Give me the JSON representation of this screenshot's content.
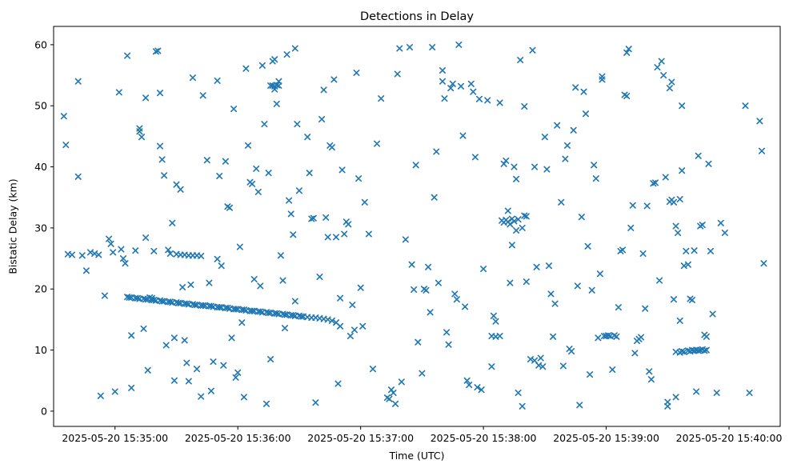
{
  "chart_data": {
    "type": "scatter",
    "title": "Detections in Delay",
    "xlabel": "Time (UTC)",
    "ylabel": "Bistatic Delay (km)",
    "marker": "x",
    "marker_color": "#1f77b4",
    "grid": false,
    "legend": null,
    "x_encoding": "seconds after 2025-05-20 15:35:00 UTC",
    "xlim": [
      -30,
      325
    ],
    "ylim": [
      -2.5,
      63
    ],
    "x_ticks": [
      0,
      60,
      120,
      180,
      240,
      300
    ],
    "x_tick_labels": [
      "2025-05-20 15:35:00",
      "2025-05-20 15:36:00",
      "2025-05-20 15:37:00",
      "2025-05-20 15:38:00",
      "2025-05-20 15:39:00",
      "2025-05-20 15:40:00"
    ],
    "y_ticks": [
      0,
      10,
      20,
      30,
      40,
      50,
      60
    ],
    "points": [
      [
        -25,
        48.3
      ],
      [
        -24,
        43.6
      ],
      [
        -23,
        25.7
      ],
      [
        -21,
        25.6
      ],
      [
        -18,
        54.0
      ],
      [
        -18,
        38.4
      ],
      [
        -16,
        25.5
      ],
      [
        -14,
        23.0
      ],
      [
        -12,
        26.0
      ],
      [
        -10,
        25.8
      ],
      [
        -8,
        25.6
      ],
      [
        -7,
        2.5
      ],
      [
        -5,
        18.9
      ],
      [
        -3,
        28.2
      ],
      [
        -2,
        27.4
      ],
      [
        -1,
        26.0
      ],
      [
        0,
        3.2
      ],
      [
        2,
        52.2
      ],
      [
        3,
        26.5
      ],
      [
        4,
        25.0
      ],
      [
        5,
        24.2
      ],
      [
        6,
        58.2
      ],
      [
        8,
        3.8
      ],
      [
        8,
        12.4
      ],
      [
        10,
        26.3
      ],
      [
        12,
        46.3
      ],
      [
        12,
        45.8
      ],
      [
        13,
        44.9
      ],
      [
        14,
        13.5
      ],
      [
        15,
        51.3
      ],
      [
        15,
        28.4
      ],
      [
        16,
        6.7
      ],
      [
        17,
        18.6
      ],
      [
        18,
        18.5
      ],
      [
        19,
        26.2
      ],
      [
        20,
        58.9
      ],
      [
        21,
        59.0
      ],
      [
        22,
        52.1
      ],
      [
        22,
        43.4
      ],
      [
        23,
        41.2
      ],
      [
        24,
        38.6
      ],
      [
        25,
        10.8
      ],
      [
        26,
        26.4
      ],
      [
        27,
        25.8
      ],
      [
        28,
        30.8
      ],
      [
        29,
        5.0
      ],
      [
        29,
        12.0
      ],
      [
        30,
        25.7
      ],
      [
        32,
        25.6
      ],
      [
        34,
        25.6
      ],
      [
        36,
        25.5
      ],
      [
        38,
        25.5
      ],
      [
        40,
        25.5
      ],
      [
        42,
        25.4
      ],
      [
        30,
        37.1
      ],
      [
        32,
        36.3
      ],
      [
        33,
        20.3
      ],
      [
        34,
        11.6
      ],
      [
        35,
        7.9
      ],
      [
        36,
        4.9
      ],
      [
        37,
        20.7
      ],
      [
        38,
        54.6
      ],
      [
        40,
        6.9
      ],
      [
        42,
        2.4
      ],
      [
        43,
        51.7
      ],
      [
        45,
        41.1
      ],
      [
        46,
        21.0
      ],
      [
        47,
        3.3
      ],
      [
        48,
        8.1
      ],
      [
        50,
        54.1
      ],
      [
        50,
        24.9
      ],
      [
        51,
        38.5
      ],
      [
        52,
        23.8
      ],
      [
        53,
        7.5
      ],
      [
        54,
        40.9
      ],
      [
        55,
        33.5
      ],
      [
        56,
        33.3
      ],
      [
        57,
        12.0
      ],
      [
        58,
        49.5
      ],
      [
        59,
        5.5
      ],
      [
        60,
        6.3
      ],
      [
        61,
        26.9
      ],
      [
        62,
        14.5
      ],
      [
        63,
        2.3
      ],
      [
        64,
        56.1
      ],
      [
        65,
        43.5
      ],
      [
        66,
        37.5
      ],
      [
        67,
        37.2
      ],
      [
        68,
        21.6
      ],
      [
        69,
        39.7
      ],
      [
        70,
        35.9
      ],
      [
        71,
        20.5
      ],
      [
        72,
        56.6
      ],
      [
        73,
        47.0
      ],
      [
        74,
        1.2
      ],
      [
        75,
        39.0
      ],
      [
        76,
        8.5
      ],
      [
        77,
        57.3
      ],
      [
        78,
        57.6
      ],
      [
        78,
        52.7
      ],
      [
        79,
        50.3
      ],
      [
        80,
        54.0
      ],
      [
        81,
        25.5
      ],
      [
        82,
        21.4
      ],
      [
        83,
        13.6
      ],
      [
        84,
        58.4
      ],
      [
        85,
        34.5
      ],
      [
        86,
        32.3
      ],
      [
        87,
        28.9
      ],
      [
        88,
        18.0
      ],
      [
        88,
        59.4
      ],
      [
        89,
        47.0
      ],
      [
        90,
        36.1
      ],
      [
        76,
        53.3
      ],
      [
        77,
        53.3
      ],
      [
        78,
        53.2
      ],
      [
        79,
        53.4
      ],
      [
        80,
        53.3
      ],
      [
        94,
        44.9
      ],
      [
        95,
        39.0
      ],
      [
        96,
        31.5
      ],
      [
        97,
        31.6
      ],
      [
        98,
        1.4
      ],
      [
        100,
        22.0
      ],
      [
        101,
        47.8
      ],
      [
        102,
        52.6
      ],
      [
        103,
        31.7
      ],
      [
        104,
        28.5
      ],
      [
        105,
        43.5
      ],
      [
        106,
        43.2
      ],
      [
        107,
        54.3
      ],
      [
        108,
        28.5
      ],
      [
        109,
        4.5
      ],
      [
        110,
        18.5
      ],
      [
        111,
        39.5
      ],
      [
        112,
        29.0
      ],
      [
        113,
        31.0
      ],
      [
        114,
        30.6
      ],
      [
        115,
        12.3
      ],
      [
        116,
        17.4
      ],
      [
        117,
        13.3
      ],
      [
        118,
        55.4
      ],
      [
        119,
        38.1
      ],
      [
        120,
        20.2
      ],
      [
        121,
        13.9
      ],
      [
        122,
        34.2
      ],
      [
        124,
        29.0
      ],
      [
        126,
        6.9
      ],
      [
        128,
        43.8
      ],
      [
        130,
        51.2
      ],
      [
        133,
        2.2
      ],
      [
        134,
        2.0
      ],
      [
        135,
        3.5
      ],
      [
        136,
        3.0
      ],
      [
        137,
        1.2
      ],
      [
        138,
        55.2
      ],
      [
        139,
        59.4
      ],
      [
        140,
        4.8
      ],
      [
        142,
        28.1
      ],
      [
        144,
        59.6
      ],
      [
        145,
        24.0
      ],
      [
        146,
        19.9
      ],
      [
        147,
        40.3
      ],
      [
        148,
        11.3
      ],
      [
        150,
        6.2
      ],
      [
        151,
        20.0
      ],
      [
        152,
        19.8
      ],
      [
        153,
        23.6
      ],
      [
        154,
        16.2
      ],
      [
        155,
        59.6
      ],
      [
        156,
        35.0
      ],
      [
        157,
        42.5
      ],
      [
        158,
        21.0
      ],
      [
        160,
        55.8
      ],
      [
        160,
        54.0
      ],
      [
        161,
        51.2
      ],
      [
        162,
        12.9
      ],
      [
        163,
        10.9
      ],
      [
        164,
        52.9
      ],
      [
        165,
        53.6
      ],
      [
        166,
        19.2
      ],
      [
        167,
        18.3
      ],
      [
        168,
        60.0
      ],
      [
        169,
        53.2
      ],
      [
        170,
        45.1
      ],
      [
        171,
        17.1
      ],
      [
        172,
        5.0
      ],
      [
        173,
        4.3
      ],
      [
        174,
        53.6
      ],
      [
        175,
        52.3
      ],
      [
        176,
        41.6
      ],
      [
        177,
        3.9
      ],
      [
        178,
        51.1
      ],
      [
        179,
        3.5
      ],
      [
        180,
        23.3
      ],
      [
        182,
        50.9
      ],
      [
        184,
        12.3
      ],
      [
        184,
        7.3
      ],
      [
        185,
        15.6
      ],
      [
        186,
        14.7
      ],
      [
        186,
        12.2
      ],
      [
        188,
        50.5
      ],
      [
        188,
        12.3
      ],
      [
        189,
        31.2
      ],
      [
        190,
        30.9
      ],
      [
        191,
        31.3
      ],
      [
        192,
        31.0
      ],
      [
        193,
        30.6
      ],
      [
        194,
        31.5
      ],
      [
        195,
        31.1
      ],
      [
        196,
        29.6
      ],
      [
        197,
        31.4
      ],
      [
        199,
        30.0
      ],
      [
        200,
        32.0
      ],
      [
        201,
        31.9
      ],
      [
        190,
        40.5
      ],
      [
        191,
        41.0
      ],
      [
        192,
        32.8
      ],
      [
        193,
        21.0
      ],
      [
        194,
        27.2
      ],
      [
        195,
        40.0
      ],
      [
        196,
        38.0
      ],
      [
        197,
        3.0
      ],
      [
        198,
        57.5
      ],
      [
        199,
        0.8
      ],
      [
        200,
        49.9
      ],
      [
        201,
        21.2
      ],
      [
        204,
        59.1
      ],
      [
        205,
        40.0
      ],
      [
        206,
        23.6
      ],
      [
        203,
        8.5
      ],
      [
        205,
        8.3
      ],
      [
        207,
        7.5
      ],
      [
        209,
        7.3
      ],
      [
        208,
        8.7
      ],
      [
        210,
        44.9
      ],
      [
        211,
        39.6
      ],
      [
        212,
        23.8
      ],
      [
        213,
        19.2
      ],
      [
        214,
        12.2
      ],
      [
        215,
        17.6
      ],
      [
        216,
        46.8
      ],
      [
        218,
        34.2
      ],
      [
        219,
        7.4
      ],
      [
        220,
        41.3
      ],
      [
        221,
        43.5
      ],
      [
        222,
        10.2
      ],
      [
        223,
        9.8
      ],
      [
        224,
        46.0
      ],
      [
        225,
        53.0
      ],
      [
        226,
        20.5
      ],
      [
        227,
        1.0
      ],
      [
        228,
        31.8
      ],
      [
        229,
        52.3
      ],
      [
        230,
        48.7
      ],
      [
        231,
        27.0
      ],
      [
        232,
        6.0
      ],
      [
        233,
        19.8
      ],
      [
        234,
        40.3
      ],
      [
        235,
        38.1
      ],
      [
        236,
        12.0
      ],
      [
        237,
        22.5
      ],
      [
        238,
        54.3
      ],
      [
        238,
        54.8
      ],
      [
        239,
        12.3
      ],
      [
        240,
        12.3
      ],
      [
        241,
        12.4
      ],
      [
        242,
        12.3
      ],
      [
        244,
        12.4
      ],
      [
        245,
        12.2
      ],
      [
        243,
        6.8
      ],
      [
        246,
        17.0
      ],
      [
        247,
        26.2
      ],
      [
        248,
        26.4
      ],
      [
        249,
        51.8
      ],
      [
        250,
        51.6
      ],
      [
        250,
        58.7
      ],
      [
        251,
        59.3
      ],
      [
        252,
        30.0
      ],
      [
        253,
        33.7
      ],
      [
        254,
        9.5
      ],
      [
        255,
        11.5
      ],
      [
        256,
        11.8
      ],
      [
        257,
        12.1
      ],
      [
        258,
        25.8
      ],
      [
        259,
        16.8
      ],
      [
        260,
        33.6
      ],
      [
        261,
        6.5
      ],
      [
        262,
        5.2
      ],
      [
        263,
        37.3
      ],
      [
        264,
        37.4
      ],
      [
        265,
        56.3
      ],
      [
        266,
        21.4
      ],
      [
        267,
        57.3
      ],
      [
        268,
        55.0
      ],
      [
        269,
        38.3
      ],
      [
        270,
        1.5
      ],
      [
        270,
        0.8
      ],
      [
        271,
        52.9
      ],
      [
        272,
        53.9
      ],
      [
        273,
        18.3
      ],
      [
        274,
        2.3
      ],
      [
        275,
        29.2
      ],
      [
        276,
        14.8
      ],
      [
        277,
        39.4
      ],
      [
        278,
        23.8
      ],
      [
        279,
        26.2
      ],
      [
        280,
        24.0
      ],
      [
        281,
        18.4
      ],
      [
        282,
        18.2
      ],
      [
        283,
        26.3
      ],
      [
        284,
        3.2
      ],
      [
        285,
        41.8
      ],
      [
        286,
        30.3
      ],
      [
        287,
        30.5
      ],
      [
        288,
        12.5
      ],
      [
        289,
        12.2
      ],
      [
        271,
        34.3
      ],
      [
        272,
        34.6
      ],
      [
        273,
        34.2
      ],
      [
        274,
        30.3
      ],
      [
        276,
        34.7
      ],
      [
        277,
        50.0
      ],
      [
        274,
        9.7
      ],
      [
        276,
        9.6
      ],
      [
        277,
        9.8
      ],
      [
        278,
        9.7
      ],
      [
        280,
        9.9
      ],
      [
        281,
        9.8
      ],
      [
        282,
        10.0
      ],
      [
        283,
        9.9
      ],
      [
        284,
        10.0
      ],
      [
        285,
        9.9
      ],
      [
        286,
        10.0
      ],
      [
        287,
        10.1
      ],
      [
        288,
        9.9
      ],
      [
        289,
        10.0
      ],
      [
        290,
        40.5
      ],
      [
        291,
        26.2
      ],
      [
        292,
        15.9
      ],
      [
        294,
        3.0
      ],
      [
        296,
        30.8
      ],
      [
        298,
        29.2
      ],
      [
        308,
        50.0
      ],
      [
        310,
        3.0
      ],
      [
        315,
        47.5
      ],
      [
        316,
        42.6
      ],
      [
        317,
        24.2
      ],
      [
        6,
        18.7
      ],
      [
        8,
        18.6
      ],
      [
        10,
        18.5
      ],
      [
        12,
        18.4
      ],
      [
        14,
        18.4
      ],
      [
        16,
        18.3
      ],
      [
        18,
        18.2
      ],
      [
        20,
        18.1
      ],
      [
        22,
        18.1
      ],
      [
        24,
        18.0
      ],
      [
        26,
        17.9
      ],
      [
        28,
        17.8
      ],
      [
        30,
        17.8
      ],
      [
        32,
        17.7
      ],
      [
        34,
        17.6
      ],
      [
        36,
        17.5
      ],
      [
        38,
        17.5
      ],
      [
        40,
        17.4
      ],
      [
        42,
        17.3
      ],
      [
        44,
        17.3
      ],
      [
        46,
        17.2
      ],
      [
        48,
        17.1
      ],
      [
        50,
        17.0
      ],
      [
        52,
        17.0
      ],
      [
        54,
        16.9
      ],
      [
        56,
        16.8
      ],
      [
        58,
        16.7
      ],
      [
        60,
        16.7
      ],
      [
        62,
        16.6
      ],
      [
        64,
        16.5
      ],
      [
        66,
        16.4
      ],
      [
        68,
        16.4
      ],
      [
        70,
        16.3
      ],
      [
        72,
        16.2
      ],
      [
        74,
        16.2
      ],
      [
        76,
        16.1
      ],
      [
        78,
        16.0
      ],
      [
        80,
        15.9
      ],
      [
        82,
        15.9
      ],
      [
        84,
        15.8
      ],
      [
        86,
        15.7
      ],
      [
        88,
        15.6
      ],
      [
        90,
        15.6
      ],
      [
        92,
        15.5
      ],
      [
        94,
        15.4
      ],
      [
        96,
        15.3
      ],
      [
        98,
        15.3
      ],
      [
        100,
        15.2
      ],
      [
        7,
        18.6
      ],
      [
        11,
        18.5
      ],
      [
        15,
        18.3
      ],
      [
        19,
        18.2
      ],
      [
        23,
        18.0
      ],
      [
        27,
        17.9
      ],
      [
        31,
        17.7
      ],
      [
        35,
        17.6
      ],
      [
        39,
        17.4
      ],
      [
        43,
        17.3
      ],
      [
        47,
        17.2
      ],
      [
        51,
        17.0
      ],
      [
        55,
        16.9
      ],
      [
        59,
        16.7
      ],
      [
        63,
        16.6
      ],
      [
        67,
        16.4
      ],
      [
        71,
        16.3
      ],
      [
        75,
        16.1
      ],
      [
        79,
        16.0
      ],
      [
        83,
        15.8
      ],
      [
        87,
        15.7
      ],
      [
        91,
        15.5
      ],
      [
        102,
        15.1
      ],
      [
        104,
        15.0
      ],
      [
        106,
        14.8
      ],
      [
        108,
        14.5
      ],
      [
        110,
        13.9
      ]
    ]
  }
}
